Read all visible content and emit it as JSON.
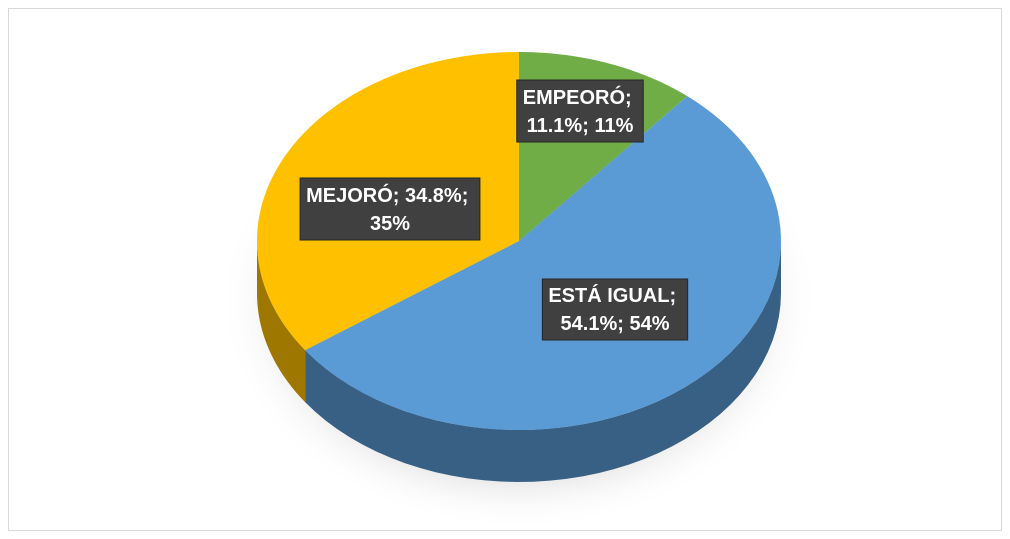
{
  "chart_data": {
    "type": "pie",
    "categories": [
      "EMPEORÓ",
      "ESTÁ IGUAL",
      "MEJORÓ"
    ],
    "values": [
      11.1,
      54.1,
      34.8
    ],
    "value_labels": [
      "11.1%",
      "54.1%",
      "34.8%"
    ],
    "percent_labels": [
      "11%",
      "54%",
      "35%"
    ],
    "separator": "; ",
    "colors": [
      "#70ad47",
      "#5b9bd5",
      "#ffc000"
    ]
  }
}
